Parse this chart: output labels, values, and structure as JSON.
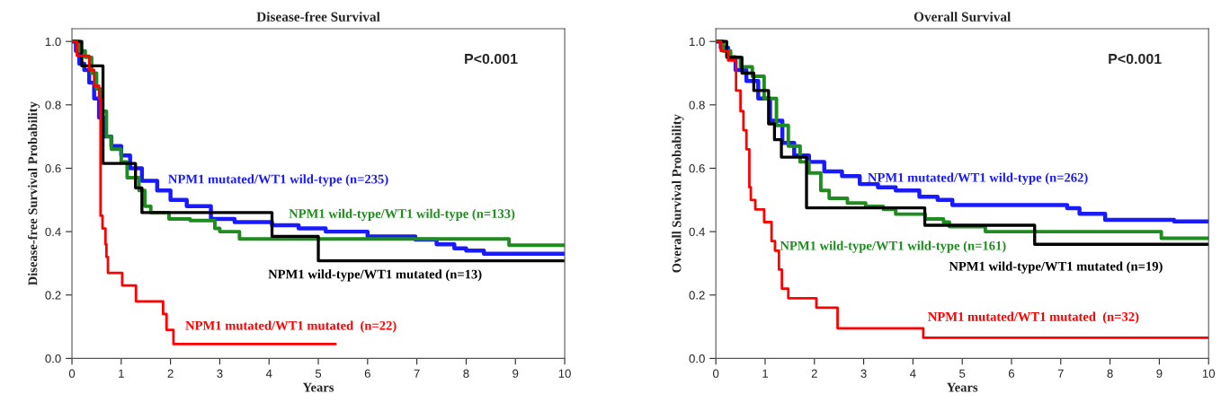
{
  "chart_data": [
    {
      "type": "step",
      "title": "Disease-free Survival",
      "xlabel": "Years",
      "ylabel": "Disease-free Survival Probability",
      "annotations": [
        "P<0.001"
      ],
      "xlim": [
        0,
        10
      ],
      "ylim": [
        0,
        1.04
      ],
      "xticks": [
        0,
        1,
        2,
        3,
        4,
        5,
        6,
        7,
        8,
        9,
        10
      ],
      "yticks": [
        {
          "value": 0,
          "label": "0.0"
        },
        {
          "value": 0.2,
          "label": "0.2"
        },
        {
          "value": 0.4,
          "label": "0.4"
        },
        {
          "value": 0.6,
          "label": "0.6"
        },
        {
          "value": 0.8,
          "label": "0.8"
        },
        {
          "value": 1,
          "label": "1.0"
        }
      ],
      "grid": false,
      "legend": false,
      "series": [
        {
          "name": "NPM1 mutated/WT1 wild-type (n=235)",
          "color": "#1a1aff",
          "x": [
            0,
            0.08,
            0.15,
            0.25,
            0.35,
            0.45,
            0.55,
            0.65,
            0.8,
            1.0,
            1.18,
            1.42,
            1.73,
            2.0,
            2.33,
            2.82,
            3.3,
            4.06,
            4.6,
            5.15,
            6.0,
            6.97,
            7.4,
            7.76,
            8.0,
            8.36,
            10
          ],
          "values": [
            1,
            0.97,
            0.93,
            0.91,
            0.87,
            0.82,
            0.76,
            0.7,
            0.67,
            0.64,
            0.6,
            0.56,
            0.53,
            0.5,
            0.48,
            0.44,
            0.43,
            0.42,
            0.41,
            0.4,
            0.385,
            0.375,
            0.36,
            0.347,
            0.34,
            0.33,
            0.33
          ]
        },
        {
          "name": "NPM1 wild-type/WT1 wild-type (n=133)",
          "color": "#1f8c1f",
          "x": [
            0,
            0.15,
            0.27,
            0.4,
            0.5,
            0.6,
            0.7,
            0.8,
            1.0,
            1.12,
            1.36,
            1.48,
            1.6,
            1.97,
            2.4,
            2.9,
            3.0,
            3.4,
            8.87,
            10
          ],
          "values": [
            1,
            0.97,
            0.95,
            0.9,
            0.85,
            0.78,
            0.7,
            0.66,
            0.62,
            0.57,
            0.53,
            0.48,
            0.46,
            0.44,
            0.435,
            0.41,
            0.4,
            0.377,
            0.357,
            0.357
          ]
        },
        {
          "name": "NPM1 wild-type/WT1 mutated (n=13)",
          "color": "#000000",
          "x": [
            0,
            0.2,
            0.63,
            1.29,
            1.42,
            4.06,
            5.0,
            10
          ],
          "values": [
            1,
            0.923,
            0.615,
            0.538,
            0.46,
            0.385,
            0.308,
            0.308
          ]
        },
        {
          "name": "NPM1 mutated/WT1 mutated  (n=22)",
          "color": "#ff0000",
          "x": [
            0,
            0.1,
            0.35,
            0.45,
            0.55,
            0.58,
            0.62,
            0.68,
            0.7,
            0.73,
            1.02,
            1.3,
            1.85,
            1.92,
            2.06,
            5.35
          ],
          "values": [
            1,
            0.955,
            0.91,
            0.86,
            0.82,
            0.45,
            0.41,
            0.36,
            0.32,
            0.27,
            0.23,
            0.18,
            0.14,
            0.09,
            0.045,
            0.045
          ]
        }
      ]
    },
    {
      "type": "step",
      "title": "Overall Survival",
      "xlabel": "Years",
      "ylabel": "Overall Survival Probability",
      "annotations": [
        "P<0.001"
      ],
      "xlim": [
        0,
        10
      ],
      "ylim": [
        0,
        1.04
      ],
      "xticks": [
        0,
        1,
        2,
        3,
        4,
        5,
        6,
        7,
        8,
        9,
        10
      ],
      "yticks": [
        {
          "value": 0,
          "label": "0.0"
        },
        {
          "value": 0.2,
          "label": "0.2"
        },
        {
          "value": 0.4,
          "label": "0.4"
        },
        {
          "value": 0.6,
          "label": "0.6"
        },
        {
          "value": 0.8,
          "label": "0.8"
        },
        {
          "value": 1,
          "label": "1.0"
        }
      ],
      "grid": false,
      "legend": false,
      "series": [
        {
          "name": "NPM1 mutated/WT1 wild-type (n=262)",
          "color": "#1a1aff",
          "x": [
            0,
            0.1,
            0.25,
            0.4,
            0.62,
            0.86,
            1.1,
            1.35,
            1.59,
            1.89,
            2.2,
            2.56,
            2.92,
            3.29,
            3.65,
            4.13,
            4.5,
            4.8,
            7.13,
            7.38,
            7.9,
            9.3,
            10
          ],
          "values": [
            1,
            0.98,
            0.95,
            0.91,
            0.875,
            0.82,
            0.75,
            0.68,
            0.64,
            0.62,
            0.59,
            0.575,
            0.55,
            0.54,
            0.53,
            0.51,
            0.5,
            0.484,
            0.474,
            0.456,
            0.437,
            0.432,
            0.432
          ]
        },
        {
          "name": "NPM1 wild-type/WT1 wild-type (n=161)",
          "color": "#1f8c1f",
          "x": [
            0,
            0.15,
            0.3,
            0.5,
            0.74,
            0.98,
            1.23,
            1.47,
            1.71,
            1.89,
            2.13,
            2.3,
            2.67,
            3.04,
            3.4,
            3.65,
            4.25,
            4.62,
            4.74,
            5.47,
            9.04,
            10
          ],
          "values": [
            1,
            0.97,
            0.95,
            0.92,
            0.89,
            0.82,
            0.735,
            0.67,
            0.62,
            0.585,
            0.53,
            0.505,
            0.49,
            0.48,
            0.47,
            0.455,
            0.44,
            0.43,
            0.416,
            0.4,
            0.379,
            0.379
          ]
        },
        {
          "name": "NPM1 wild-type/WT1 mutated (n=19)",
          "color": "#000000",
          "x": [
            0,
            0.22,
            0.53,
            0.77,
            1.07,
            1.19,
            1.33,
            1.84,
            4.24,
            6.47,
            10
          ],
          "values": [
            1,
            0.95,
            0.9,
            0.845,
            0.74,
            0.69,
            0.635,
            0.475,
            0.42,
            0.36,
            0.36
          ]
        },
        {
          "name": "NPM1 mutated/WT1 mutated  (n=32)",
          "color": "#ff0000",
          "x": [
            0,
            0.1,
            0.25,
            0.41,
            0.5,
            0.56,
            0.62,
            0.68,
            0.71,
            0.8,
            0.98,
            1.13,
            1.2,
            1.28,
            1.34,
            1.47,
            2.04,
            2.47,
            4.21,
            10
          ],
          "values": [
            1,
            0.97,
            0.94,
            0.845,
            0.78,
            0.72,
            0.66,
            0.54,
            0.5,
            0.47,
            0.43,
            0.37,
            0.34,
            0.28,
            0.22,
            0.19,
            0.16,
            0.095,
            0.065,
            0.065
          ]
        }
      ]
    }
  ]
}
